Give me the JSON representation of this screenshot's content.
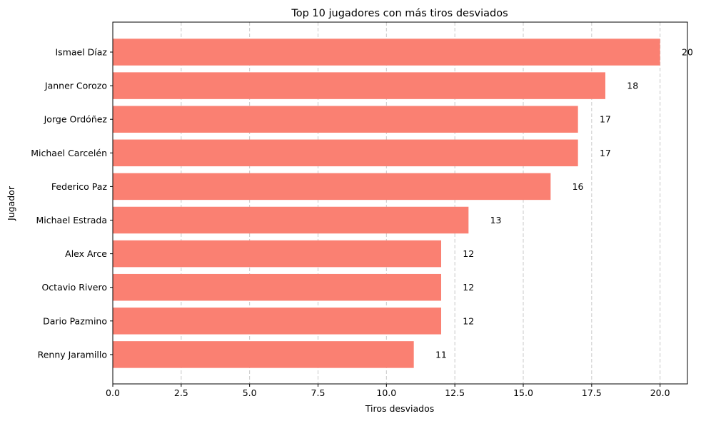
{
  "chart_data": {
    "type": "bar",
    "orientation": "horizontal",
    "title": "Top 10 jugadores con más tiros desviados",
    "xlabel": "Tiros desviados",
    "ylabel": "Jugador",
    "xlim": [
      0,
      21
    ],
    "xticks": [
      0,
      2.5,
      5,
      7.5,
      10,
      12.5,
      15,
      17.5,
      20
    ],
    "xtick_labels": [
      "0.0",
      "2.5",
      "5.0",
      "7.5",
      "10.0",
      "12.5",
      "15.0",
      "17.5",
      "20.0"
    ],
    "grid": "x-dashed",
    "bar_color": "#fa8072",
    "categories": [
      "Ismael Díaz",
      "Janner Corozo",
      "Jorge Ordóñez",
      "Michael Carcelén",
      "Federico Paz",
      "Michael Estrada",
      "Alex Arce",
      "Octavio Rivero",
      "Dario Pazmino",
      "Renny Jaramillo"
    ],
    "values": [
      20,
      18,
      17,
      17,
      16,
      13,
      12,
      12,
      12,
      11
    ],
    "value_labels": [
      "20",
      "18",
      "17",
      "17",
      "16",
      "13",
      "12",
      "12",
      "12",
      "11"
    ]
  }
}
